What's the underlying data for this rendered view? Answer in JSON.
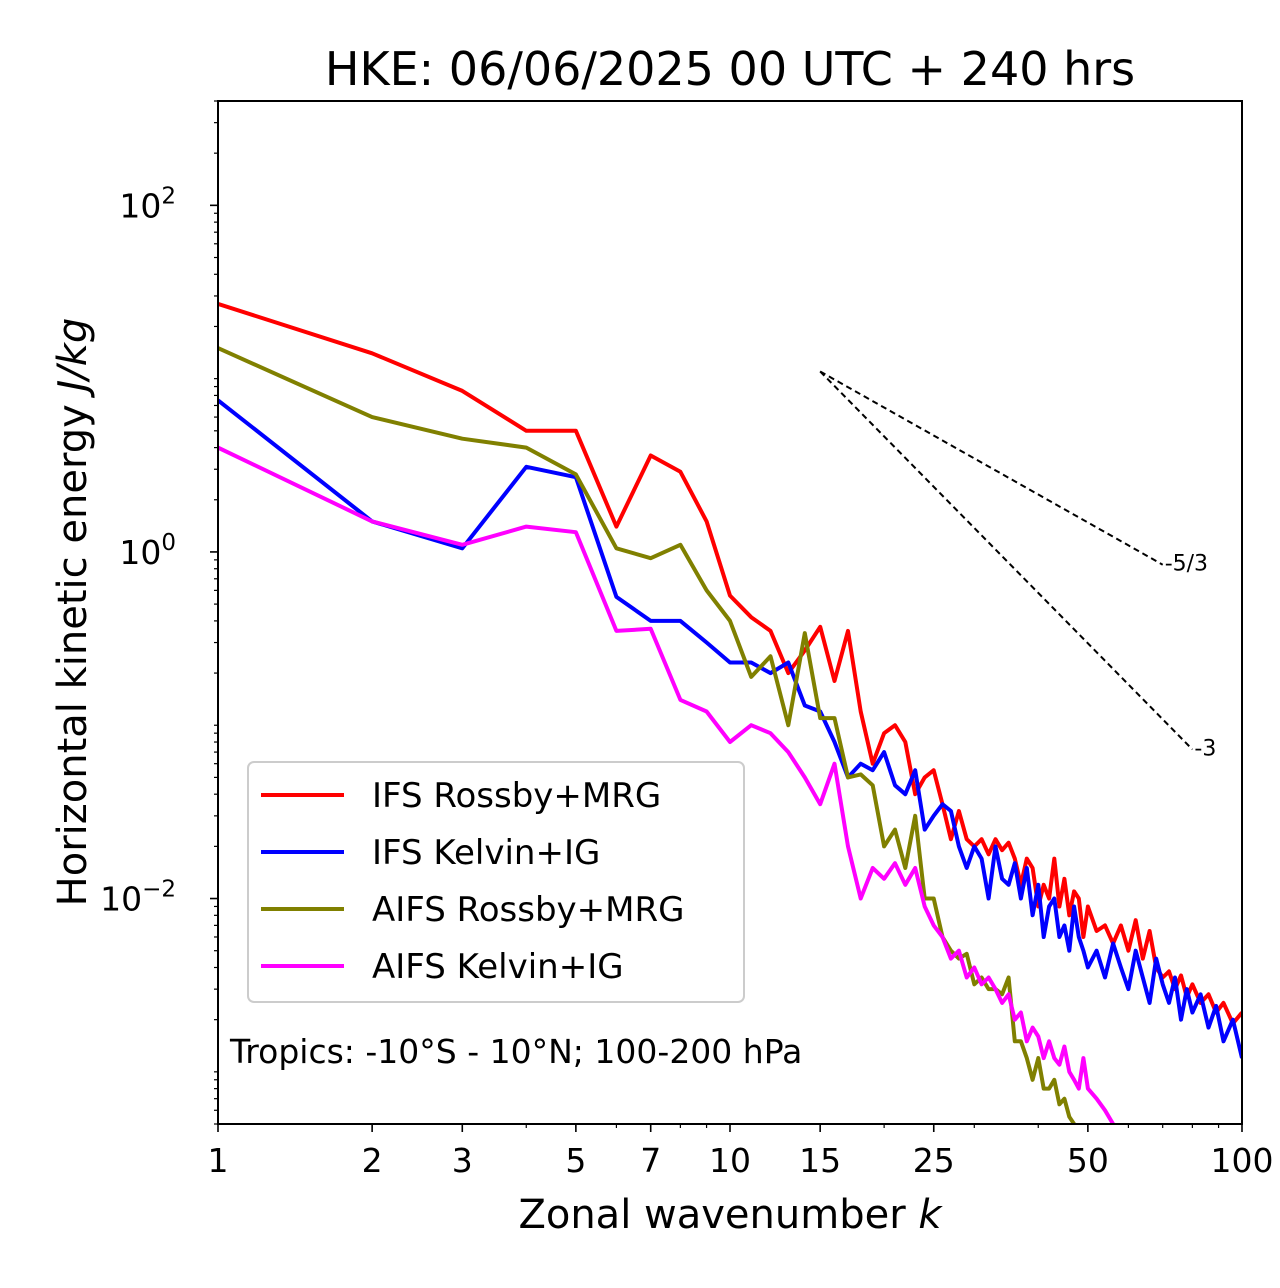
{
  "chart_data": {
    "type": "line",
    "title": "HKE: 06/06/2025 00 UTC + 240 hrs",
    "xlabel": "Zonal wavenumber ",
    "xlabel_var": "k",
    "ylabel": "Horizontal kinetic energy ",
    "ylabel_unit": "J/kg",
    "x_scale": "log",
    "y_scale": "log",
    "xlim": [
      1,
      100
    ],
    "ylim": [
      0.0005,
      400
    ],
    "x_ticks": [
      1,
      2,
      3,
      5,
      7,
      10,
      15,
      25,
      50,
      100
    ],
    "x_tick_labels": [
      "1",
      "2",
      "3",
      "5",
      "7",
      "10",
      "15",
      "25",
      "50",
      "100"
    ],
    "y_ticks": [
      {
        "value": 0.01,
        "base": "10",
        "exp": "−2"
      },
      {
        "value": 1,
        "base": "10",
        "exp": "0"
      },
      {
        "value": 100,
        "base": "10",
        "exp": "2"
      }
    ],
    "legend_position": "lower-left",
    "annotation": "Tropics: -10°S - 10°N; 100-200 hPa",
    "reference_slopes": [
      {
        "label": "-5/3",
        "slope": -1.6667,
        "x0": 15,
        "y0": 11,
        "x1": 70
      },
      {
        "label": "-3",
        "slope": -3,
        "x0": 15,
        "y0": 11,
        "x1": 80
      }
    ],
    "series": [
      {
        "name": "IFS Rossby+MRG",
        "color": "#ff0000",
        "values": [
          [
            1,
            27
          ],
          [
            2,
            14
          ],
          [
            3,
            8.5
          ],
          [
            4,
            5
          ],
          [
            5,
            5
          ],
          [
            6,
            1.4
          ],
          [
            7,
            3.6
          ],
          [
            8,
            2.9
          ],
          [
            9,
            1.5
          ],
          [
            10,
            0.56
          ],
          [
            11,
            0.42
          ],
          [
            12,
            0.35
          ],
          [
            13,
            0.2
          ],
          [
            14,
            0.27
          ],
          [
            15,
            0.37
          ],
          [
            16,
            0.18
          ],
          [
            17,
            0.35
          ],
          [
            18,
            0.12
          ],
          [
            19,
            0.06
          ],
          [
            20,
            0.09
          ],
          [
            21,
            0.1
          ],
          [
            22,
            0.08
          ],
          [
            23,
            0.04
          ],
          [
            24,
            0.05
          ],
          [
            25,
            0.055
          ],
          [
            26,
            0.035
          ],
          [
            27,
            0.022
          ],
          [
            28,
            0.032
          ],
          [
            29,
            0.022
          ],
          [
            30,
            0.02
          ],
          [
            31,
            0.022
          ],
          [
            32,
            0.018
          ],
          [
            33,
            0.022
          ],
          [
            34,
            0.019
          ],
          [
            35,
            0.021
          ],
          [
            36,
            0.017
          ],
          [
            37,
            0.012
          ],
          [
            38,
            0.017
          ],
          [
            39,
            0.015
          ],
          [
            40,
            0.009
          ],
          [
            41,
            0.012
          ],
          [
            42,
            0.01
          ],
          [
            43,
            0.017
          ],
          [
            44,
            0.009
          ],
          [
            45,
            0.013
          ],
          [
            46,
            0.008
          ],
          [
            47,
            0.011
          ],
          [
            48,
            0.01
          ],
          [
            49,
            0.006
          ],
          [
            50,
            0.009
          ],
          [
            52,
            0.0065
          ],
          [
            54,
            0.007
          ],
          [
            56,
            0.0055
          ],
          [
            58,
            0.007
          ],
          [
            60,
            0.005
          ],
          [
            62,
            0.0075
          ],
          [
            64,
            0.0045
          ],
          [
            66,
            0.0065
          ],
          [
            68,
            0.004
          ],
          [
            70,
            0.0035
          ],
          [
            72,
            0.0038
          ],
          [
            74,
            0.003
          ],
          [
            76,
            0.0036
          ],
          [
            78,
            0.0027
          ],
          [
            80,
            0.0032
          ],
          [
            83,
            0.0025
          ],
          [
            86,
            0.0028
          ],
          [
            89,
            0.0022
          ],
          [
            92,
            0.0025
          ],
          [
            96,
            0.0019
          ],
          [
            100,
            0.0022
          ]
        ]
      },
      {
        "name": "IFS Kelvin+IG",
        "color": "#0000ff",
        "values": [
          [
            1,
            7.5
          ],
          [
            2,
            1.5
          ],
          [
            3,
            1.05
          ],
          [
            4,
            3.1
          ],
          [
            5,
            2.7
          ],
          [
            6,
            0.55
          ],
          [
            7,
            0.4
          ],
          [
            8,
            0.4
          ],
          [
            9,
            0.3
          ],
          [
            10,
            0.23
          ],
          [
            11,
            0.23
          ],
          [
            12,
            0.2
          ],
          [
            13,
            0.23
          ],
          [
            14,
            0.13
          ],
          [
            15,
            0.12
          ],
          [
            16,
            0.08
          ],
          [
            17,
            0.05
          ],
          [
            18,
            0.06
          ],
          [
            19,
            0.055
          ],
          [
            20,
            0.07
          ],
          [
            21,
            0.045
          ],
          [
            22,
            0.04
          ],
          [
            23,
            0.055
          ],
          [
            24,
            0.025
          ],
          [
            25,
            0.03
          ],
          [
            26,
            0.035
          ],
          [
            27,
            0.032
          ],
          [
            28,
            0.02
          ],
          [
            29,
            0.015
          ],
          [
            30,
            0.02
          ],
          [
            31,
            0.017
          ],
          [
            32,
            0.01
          ],
          [
            33,
            0.02
          ],
          [
            34,
            0.013
          ],
          [
            35,
            0.012
          ],
          [
            36,
            0.016
          ],
          [
            37,
            0.01
          ],
          [
            38,
            0.015
          ],
          [
            39,
            0.008
          ],
          [
            40,
            0.012
          ],
          [
            41,
            0.006
          ],
          [
            42,
            0.009
          ],
          [
            43,
            0.01
          ],
          [
            44,
            0.006
          ],
          [
            45,
            0.007
          ],
          [
            46,
            0.005
          ],
          [
            47,
            0.009
          ],
          [
            48,
            0.006
          ],
          [
            49,
            0.005
          ],
          [
            50,
            0.004
          ],
          [
            52,
            0.005
          ],
          [
            54,
            0.0035
          ],
          [
            56,
            0.0055
          ],
          [
            58,
            0.004
          ],
          [
            60,
            0.003
          ],
          [
            62,
            0.005
          ],
          [
            64,
            0.0035
          ],
          [
            66,
            0.0025
          ],
          [
            68,
            0.0045
          ],
          [
            70,
            0.0032
          ],
          [
            72,
            0.0025
          ],
          [
            74,
            0.0035
          ],
          [
            76,
            0.002
          ],
          [
            78,
            0.003
          ],
          [
            80,
            0.0022
          ],
          [
            83,
            0.0028
          ],
          [
            86,
            0.0018
          ],
          [
            89,
            0.0024
          ],
          [
            92,
            0.0015
          ],
          [
            96,
            0.002
          ],
          [
            100,
            0.0012
          ]
        ]
      },
      {
        "name": "AIFS Rossby+MRG",
        "color": "#808000",
        "values": [
          [
            1,
            15
          ],
          [
            2,
            6
          ],
          [
            3,
            4.5
          ],
          [
            4,
            4
          ],
          [
            5,
            2.8
          ],
          [
            6,
            1.05
          ],
          [
            7,
            0.92
          ],
          [
            8,
            1.1
          ],
          [
            9,
            0.6
          ],
          [
            10,
            0.4
          ],
          [
            11,
            0.19
          ],
          [
            12,
            0.25
          ],
          [
            13,
            0.1
          ],
          [
            14,
            0.34
          ],
          [
            15,
            0.11
          ],
          [
            16,
            0.11
          ],
          [
            17,
            0.05
          ],
          [
            18,
            0.052
          ],
          [
            19,
            0.045
          ],
          [
            20,
            0.02
          ],
          [
            21,
            0.025
          ],
          [
            22,
            0.015
          ],
          [
            23,
            0.03
          ],
          [
            24,
            0.01
          ],
          [
            25,
            0.01
          ],
          [
            26,
            0.006
          ],
          [
            27,
            0.005
          ],
          [
            28,
            0.0045
          ],
          [
            29,
            0.0048
          ],
          [
            30,
            0.0032
          ],
          [
            31,
            0.0035
          ],
          [
            32,
            0.003
          ],
          [
            33,
            0.003
          ],
          [
            34,
            0.0028
          ],
          [
            35,
            0.0035
          ],
          [
            36,
            0.0015
          ],
          [
            37,
            0.0015
          ],
          [
            38,
            0.0012
          ],
          [
            39,
            0.0009
          ],
          [
            40,
            0.0012
          ],
          [
            41,
            0.0008
          ],
          [
            42,
            0.0008
          ],
          [
            43,
            0.0009
          ],
          [
            44,
            0.00065
          ],
          [
            45,
            0.0007
          ],
          [
            46,
            0.00055
          ],
          [
            47,
            0.0005
          ]
        ]
      },
      {
        "name": "AIFS Kelvin+IG",
        "color": "#ff00ff",
        "values": [
          [
            1,
            4
          ],
          [
            2,
            1.5
          ],
          [
            3,
            1.1
          ],
          [
            4,
            1.4
          ],
          [
            5,
            1.3
          ],
          [
            6,
            0.35
          ],
          [
            7,
            0.36
          ],
          [
            8,
            0.14
          ],
          [
            9,
            0.12
          ],
          [
            10,
            0.08
          ],
          [
            11,
            0.1
          ],
          [
            12,
            0.09
          ],
          [
            13,
            0.07
          ],
          [
            14,
            0.05
          ],
          [
            15,
            0.035
          ],
          [
            16,
            0.06
          ],
          [
            17,
            0.02
          ],
          [
            18,
            0.01
          ],
          [
            19,
            0.015
          ],
          [
            20,
            0.013
          ],
          [
            21,
            0.016
          ],
          [
            22,
            0.012
          ],
          [
            23,
            0.015
          ],
          [
            24,
            0.009
          ],
          [
            25,
            0.007
          ],
          [
            26,
            0.006
          ],
          [
            27,
            0.0045
          ],
          [
            28,
            0.005
          ],
          [
            29,
            0.0035
          ],
          [
            30,
            0.004
          ],
          [
            31,
            0.0032
          ],
          [
            32,
            0.0035
          ],
          [
            33,
            0.003
          ],
          [
            34,
            0.0025
          ],
          [
            35,
            0.0028
          ],
          [
            36,
            0.002
          ],
          [
            37,
            0.0022
          ],
          [
            38,
            0.0015
          ],
          [
            39,
            0.0018
          ],
          [
            40,
            0.0016
          ],
          [
            41,
            0.0012
          ],
          [
            42,
            0.0015
          ],
          [
            43,
            0.0012
          ],
          [
            44,
            0.0011
          ],
          [
            45,
            0.0014
          ],
          [
            46,
            0.001
          ],
          [
            47,
            0.0009
          ],
          [
            48,
            0.0008
          ],
          [
            49,
            0.0012
          ],
          [
            50,
            0.0008
          ],
          [
            52,
            0.0007
          ],
          [
            54,
            0.0006
          ],
          [
            56,
            0.0005
          ]
        ]
      }
    ]
  }
}
